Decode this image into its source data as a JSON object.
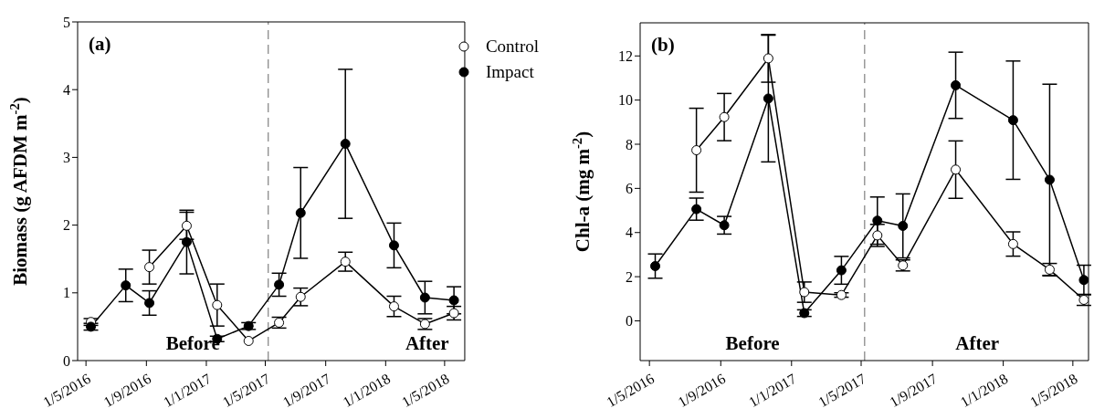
{
  "chart_data": [
    {
      "type": "line",
      "ylabel": "Biomass (g AFDM m$^{-2}$)",
      "annotations": [
        "(a)",
        "Before",
        "After"
      ],
      "x": [
        "2016-05-11",
        "2016-07-21",
        "2016-09-07",
        "2016-11-22",
        "2017-01-23",
        "2017-03-28",
        "2017-05-29",
        "2017-07-12",
        "2017-10-11",
        "2018-01-18",
        "2018-03-22",
        "2018-05-20"
      ],
      "series": [
        {
          "name": "Control",
          "color": "#ffffff",
          "values": [
            0.57,
            null,
            1.38,
            1.99,
            0.82,
            0.29,
            0.56,
            0.94,
            1.46,
            0.8,
            0.54,
            0.7
          ],
          "errors": [
            0.05,
            null,
            0.25,
            0.2,
            0.31,
            null,
            0.08,
            0.13,
            0.14,
            0.15,
            0.08,
            0.1
          ]
        },
        {
          "name": "Impact",
          "color": "#000000",
          "values": [
            0.5,
            1.11,
            0.85,
            1.75,
            0.32,
            0.51,
            1.12,
            2.18,
            3.2,
            1.7,
            0.93,
            0.89
          ],
          "errors": [
            0.05,
            0.24,
            0.18,
            0.47,
            0.04,
            0.05,
            0.17,
            0.67,
            1.1,
            0.33,
            0.24,
            0.2
          ]
        }
      ],
      "xlim": [
        "2016-04-14",
        "2018-06-11"
      ],
      "xticks": [
        {
          "value": "2016-05-01",
          "label": "1/5/2016"
        },
        {
          "value": "2016-09-01",
          "label": "1/9/2016"
        },
        {
          "value": "2017-01-01",
          "label": "1/1/2017"
        },
        {
          "value": "2017-05-01",
          "label": "1/5/2017"
        },
        {
          "value": "2017-09-01",
          "label": "1/9/2017"
        },
        {
          "value": "2018-01-01",
          "label": "1/1/2018"
        },
        {
          "value": "2018-05-01",
          "label": "1/5/2018"
        }
      ],
      "ylim": [
        0,
        5
      ],
      "yticks": [
        0,
        1,
        2,
        3,
        4,
        5
      ],
      "ref_lines": [
        {
          "axis": "x",
          "value": "2017-05-07",
          "color": "#808080",
          "line_style": "dashed"
        }
      ],
      "marker": "circle",
      "line_style": "solid",
      "legend": "top right"
    },
    {
      "type": "line",
      "ylabel": "Chl-a (mg m$^{-2}$)",
      "annotations": [
        "(b)",
        "Before",
        "After"
      ],
      "x": [
        "2016-05-11",
        "2016-07-21",
        "2016-09-07",
        "2016-11-22",
        "2017-01-23",
        "2017-03-28",
        "2017-05-29",
        "2017-07-12",
        "2017-10-11",
        "2018-01-18",
        "2018-03-22",
        "2018-05-20"
      ],
      "series": [
        {
          "color": "#ffffff",
          "values": [
            null,
            7.73,
            9.23,
            11.89,
            1.3,
            1.17,
            3.87,
            2.51,
            6.85,
            3.48,
            2.32,
            0.95
          ],
          "errors": [
            null,
            1.9,
            1.07,
            1.08,
            0.46,
            0.1,
            0.5,
            0.25,
            1.3,
            0.55,
            0.28,
            0.25
          ]
        },
        {
          "color": "#000000",
          "values": [
            2.48,
            5.06,
            4.33,
            10.07,
            0.35,
            2.29,
            4.54,
            4.3,
            10.67,
            9.09,
            6.39,
            1.85
          ],
          "errors": [
            0.55,
            0.5,
            0.4,
            2.87,
            0.15,
            0.63,
            1.07,
            1.45,
            1.5,
            2.68,
            4.33,
            0.67
          ]
        }
      ],
      "xlim": [
        "2016-04-15",
        "2018-05-28"
      ],
      "xticks": [
        {
          "value": "2016-05-01",
          "label": "1/5/2016"
        },
        {
          "value": "2016-09-01",
          "label": "1/9/2016"
        },
        {
          "value": "2017-01-01",
          "label": "1/1/2017"
        },
        {
          "value": "2017-05-01",
          "label": "1/5/2017"
        },
        {
          "value": "2017-09-01",
          "label": "1/9/2017"
        },
        {
          "value": "2018-01-01",
          "label": "1/1/2018"
        },
        {
          "value": "2018-05-01",
          "label": "1/5/2018"
        }
      ],
      "ylim": [
        -1.8,
        13.5
      ],
      "yticks": [
        0,
        2,
        4,
        6,
        8,
        10,
        12
      ],
      "ref_lines": [
        {
          "axis": "x",
          "value": "2017-05-07",
          "color": "#808080",
          "line_style": "dashed"
        }
      ],
      "marker": "circle",
      "line_style": "solid"
    }
  ]
}
